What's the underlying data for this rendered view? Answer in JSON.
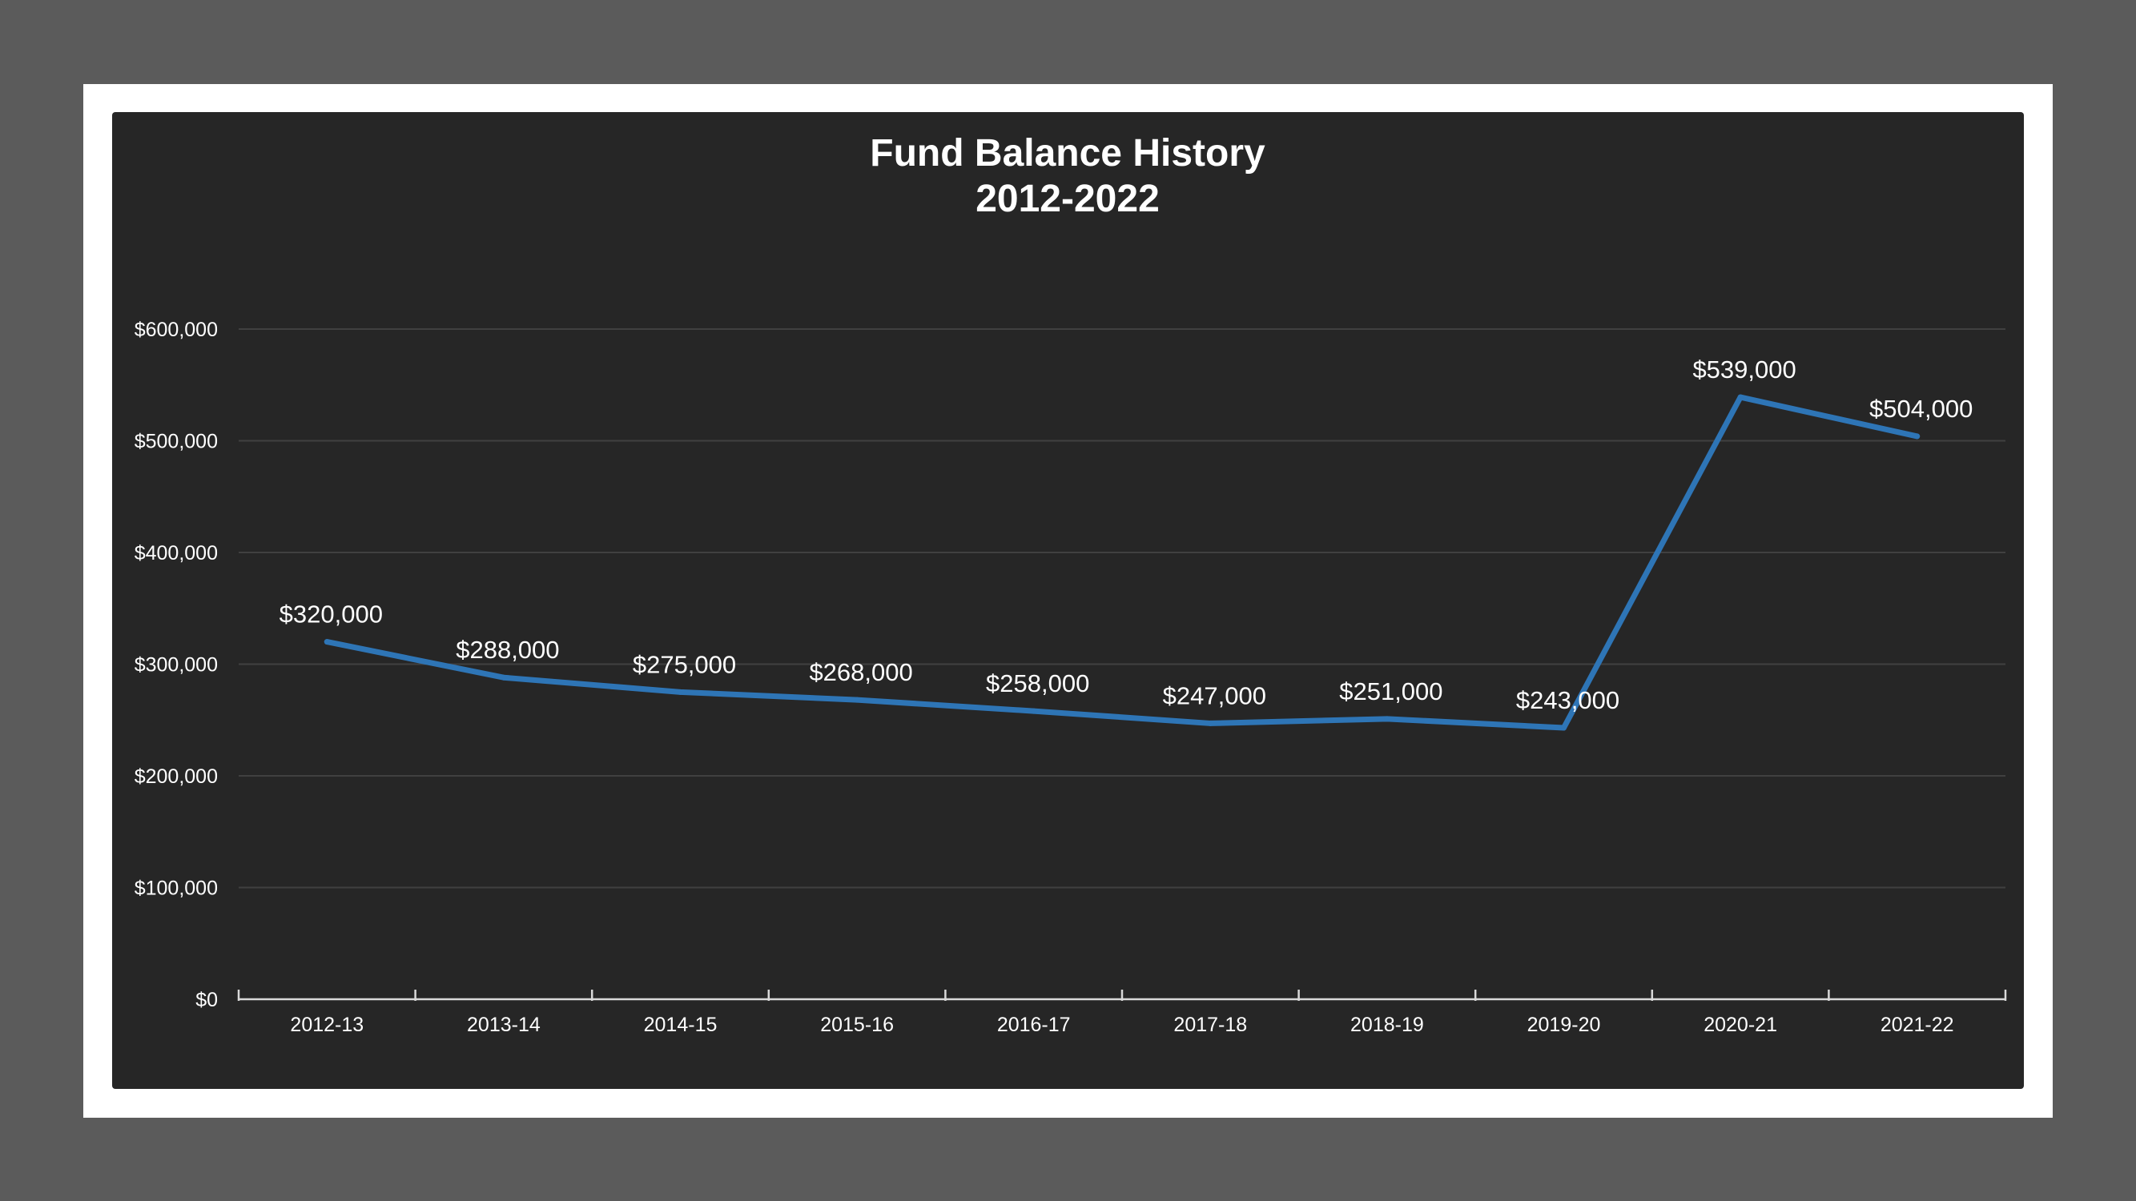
{
  "chart_data": {
    "type": "line",
    "title": [
      "Fund Balance History",
      "2012-2022"
    ],
    "xlabel": "",
    "ylabel": "",
    "categories": [
      "2012-13",
      "2013-14",
      "2014-15",
      "2015-16",
      "2016-17",
      "2017-18",
      "2018-19",
      "2019-20",
      "2020-21",
      "2021-22"
    ],
    "series": [
      {
        "values": [
          320000,
          288000,
          275000,
          268000,
          258000,
          247000,
          251000,
          243000,
          539000,
          504000
        ],
        "labels": [
          "$320,000",
          "$288,000",
          "$275,000",
          "$268,000",
          "$258,000",
          "$247,000",
          "$251,000",
          "$243,000",
          "$539,000",
          "$504,000"
        ]
      }
    ],
    "ylim": [
      0,
      600000
    ],
    "yticks": [
      0,
      100000,
      200000,
      300000,
      400000,
      500000,
      600000
    ],
    "ytick_labels": [
      "$0",
      "$100,000",
      "$200,000",
      "$300,000",
      "$400,000",
      "$500,000",
      "$600,000"
    ],
    "grid": true,
    "legend": "none",
    "colors": {
      "line": "#2e75b6",
      "plot_background": "#262626",
      "gridline": "#404040",
      "text": "#ffffff",
      "frame": "#ffffff",
      "page_background": "#5b5b5b"
    }
  }
}
